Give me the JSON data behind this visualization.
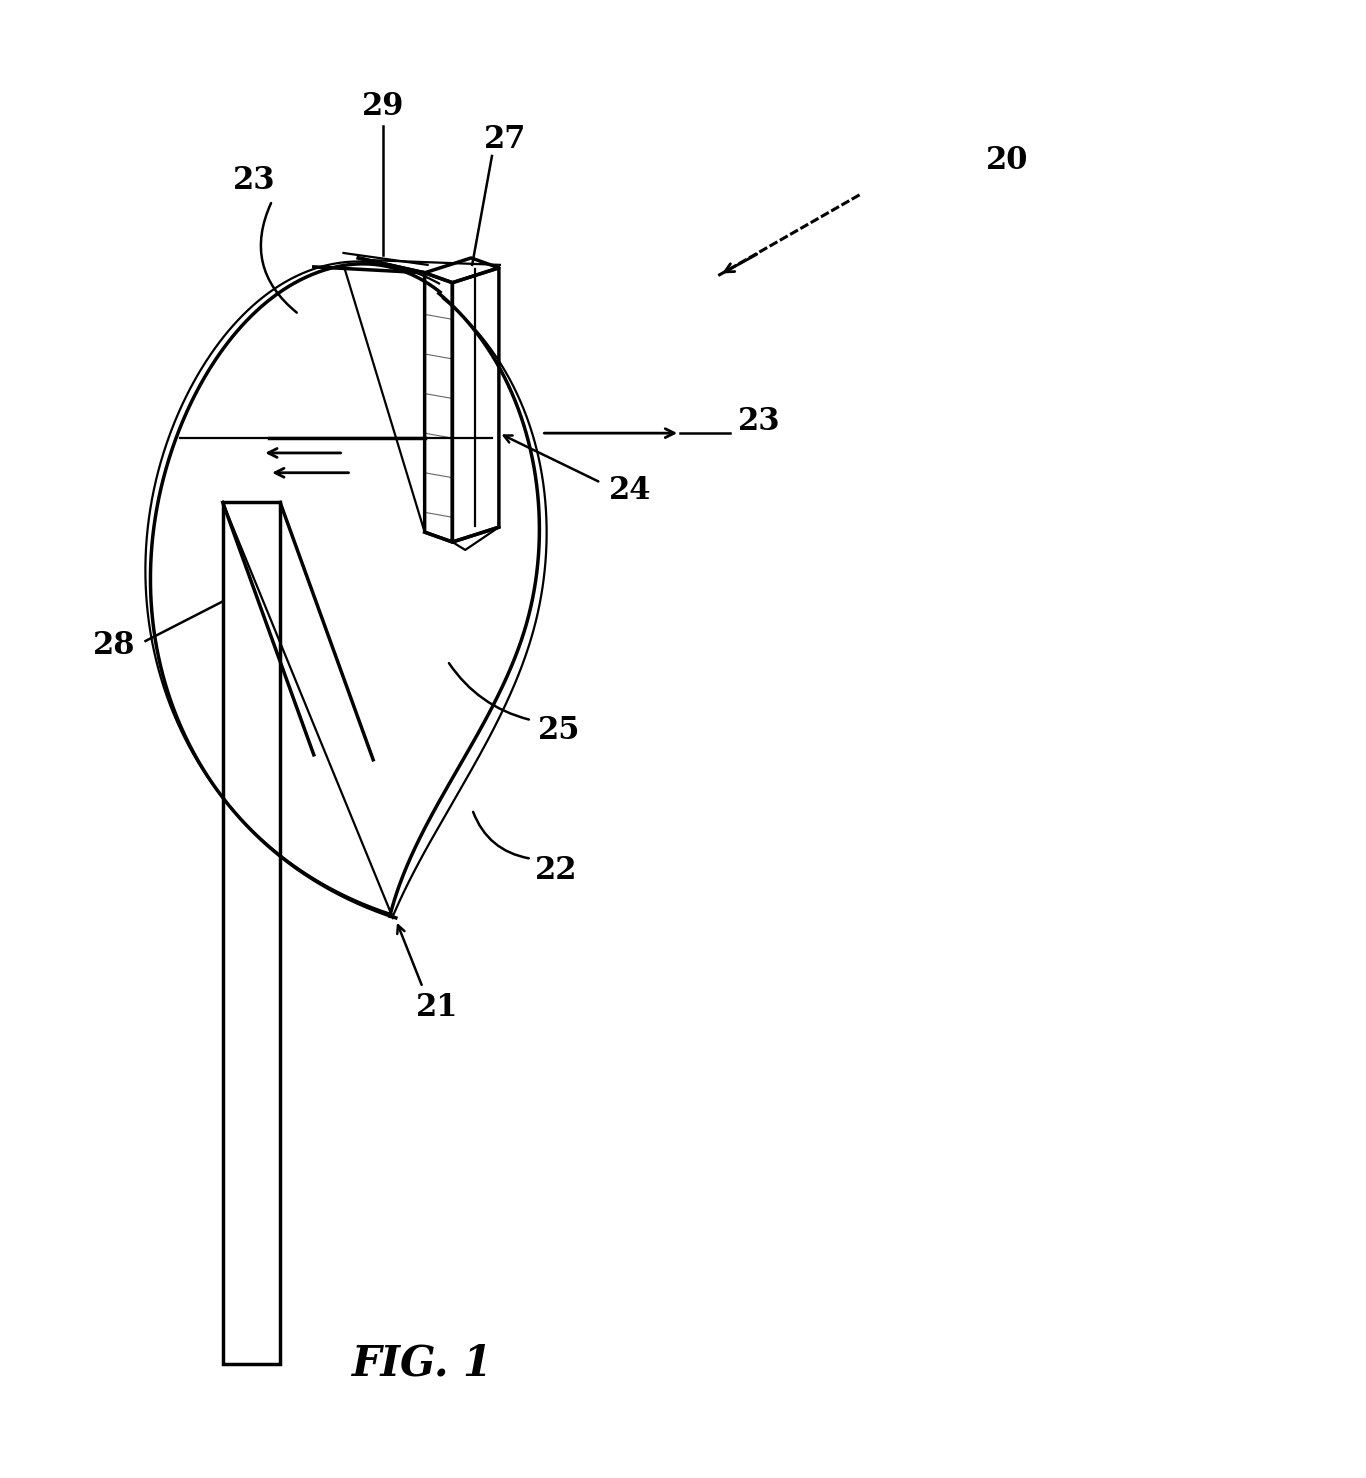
{
  "bg_color": "#ffffff",
  "line_color": "#000000",
  "fig_width": 13.66,
  "fig_height": 14.78,
  "title": "FIG. 1",
  "lw_main": 2.5,
  "lw_thin": 1.6,
  "label_fontsize": 22
}
